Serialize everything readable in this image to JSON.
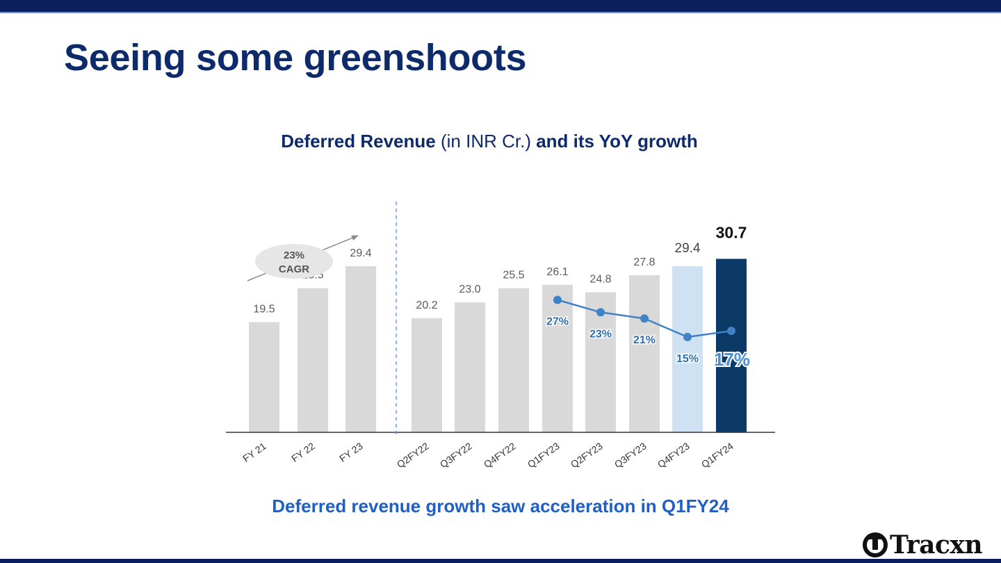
{
  "slide": {
    "title": "Seeing some greenshoots",
    "chart_heading": {
      "part1": "Deferred Revenue",
      "part2": " (in INR Cr.) ",
      "part3": "and its YoY growth"
    },
    "footnote": "Deferred revenue growth saw acceleration in Q1FY24",
    "logo_text": "Tracxn"
  },
  "colors": {
    "bar_default": "#d9d9d9",
    "bar_previous": "#cfe2f3",
    "bar_highlight": "#0b3a66",
    "line": "#3f83c6",
    "title": "#0d2a6b",
    "footnote": "#1f5fc6"
  },
  "chart_data": {
    "type": "bar",
    "categories": [
      "FY 21",
      "FY 22",
      "FY 23",
      "Q2FY22",
      "Q3FY22",
      "Q4FY22",
      "Q1FY23",
      "Q2FY23",
      "Q3FY23",
      "Q4FY23",
      "Q1FY24"
    ],
    "values": [
      19.5,
      25.5,
      29.4,
      20.2,
      23.0,
      25.5,
      26.1,
      24.8,
      27.8,
      29.4,
      30.7
    ],
    "value_labels": [
      "19.5",
      "25.5",
      "29.4",
      "20.2",
      "23.0",
      "25.5",
      "26.1",
      "24.8",
      "27.8",
      "29.4",
      "30.7"
    ],
    "ylim": [
      0,
      33
    ],
    "grid": false,
    "cagr_annotation": {
      "line1": "23%",
      "line2": "CAGR",
      "applies_to": [
        "FY 21",
        "FY 22",
        "FY 23"
      ]
    },
    "yoy_growth": {
      "categories": [
        "Q1FY23",
        "Q2FY23",
        "Q3FY23",
        "Q4FY23",
        "Q1FY24"
      ],
      "values": [
        27,
        23,
        21,
        15,
        17
      ],
      "labels": [
        "27%",
        "23%",
        "21%",
        "15%",
        "17%"
      ]
    }
  }
}
